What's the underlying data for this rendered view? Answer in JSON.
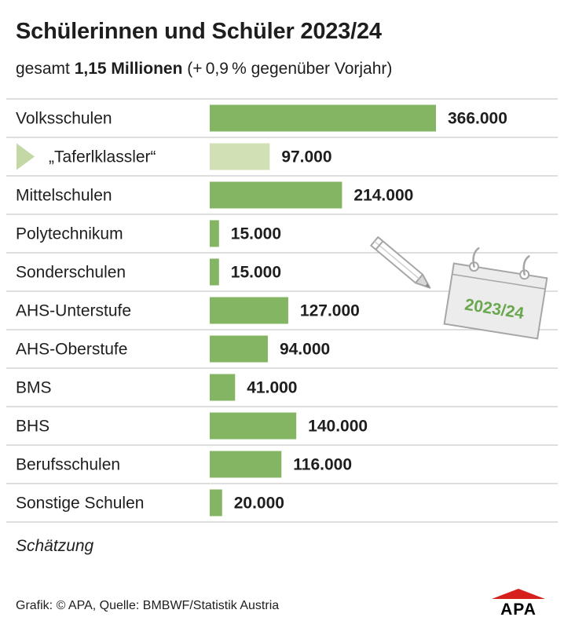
{
  "header": {
    "title": "Schülerinnen und Schüler 2023/24",
    "subtitle_pre": "gesamt ",
    "subtitle_bold": "1,15 Millionen",
    "subtitle_post": " (+ 0,9 % gegenüber Vorjahr)"
  },
  "chart_data": {
    "type": "bar",
    "orientation": "horizontal",
    "categories": [
      "Volksschulen",
      "„Taferlklassler“",
      "Mittelschulen",
      "Polytechnikum",
      "Sonderschulen",
      "AHS-Unterstufe",
      "AHS-Oberstufe",
      "BMS",
      "BHS",
      "Berufsschulen",
      "Sonstige Schulen"
    ],
    "values": [
      366000,
      97000,
      214000,
      15000,
      15000,
      127000,
      94000,
      41000,
      140000,
      116000,
      20000
    ],
    "value_labels": [
      "366.000",
      "97.000",
      "214.000",
      "15.000",
      "15.000",
      "127.000",
      "94.000",
      "41.000",
      "140.000",
      "116.000",
      "20.000"
    ],
    "sub_category_index": 1,
    "colors": {
      "bar": "#84b563",
      "sub_bar": "#d1e0b5",
      "marker": "#c3d8a4",
      "divider": "#d4d4d4"
    }
  },
  "illustration": {
    "calendar_label": "2023/24",
    "calendar_label_color": "#6aa84f",
    "icons": [
      "pencil-icon",
      "calendar-icon"
    ]
  },
  "footer": {
    "note": "Schätzung",
    "source": "Grafik: © APA, Quelle: BMBWF/Statistik Austria",
    "logo_text": "APA",
    "logo_color": "#d5201c"
  }
}
